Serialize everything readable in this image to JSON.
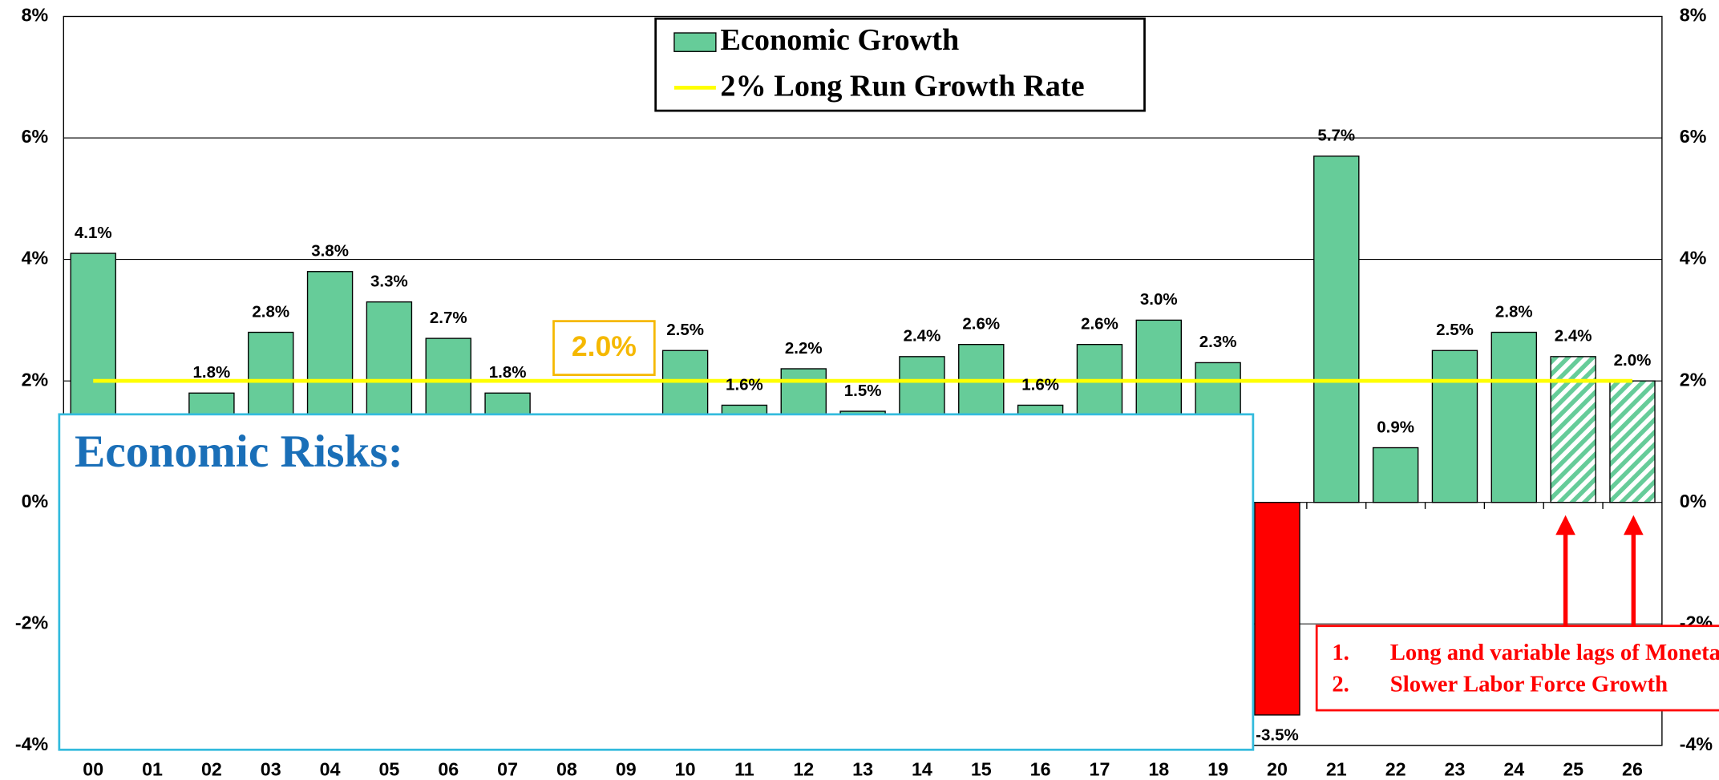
{
  "chart_data": {
    "type": "bar",
    "categories": [
      "00",
      "01",
      "02",
      "03",
      "04",
      "05",
      "06",
      "07",
      "08",
      "09",
      "10",
      "11",
      "12",
      "13",
      "14",
      "15",
      "16",
      "17",
      "18",
      "19",
      "20",
      "21",
      "22",
      "23",
      "24",
      "25",
      "26"
    ],
    "series": [
      {
        "name": "Economic Growth",
        "color": "#66cc99",
        "negative_color": "#ff0000",
        "values": [
          4.1,
          null,
          1.8,
          2.8,
          3.8,
          3.3,
          2.7,
          1.8,
          null,
          null,
          2.5,
          1.6,
          2.2,
          1.5,
          2.4,
          2.6,
          1.6,
          2.6,
          3.0,
          2.3,
          -3.5,
          5.7,
          0.9,
          2.5,
          2.8,
          2.4,
          2.0
        ],
        "value_labels": [
          "4.1%",
          null,
          "1.8%",
          "2.8%",
          "3.8%",
          "3.3%",
          "2.7%",
          "1.8%",
          null,
          null,
          "2.5%",
          "1.6%",
          "2.2%",
          "1.5%",
          "2.4%",
          "2.6%",
          "1.6%",
          "2.6%",
          "3.0%",
          "2.3%",
          "-3.5%",
          "5.7%",
          "0.9%",
          "2.5%",
          "2.8%",
          "2.4%",
          "2.0%"
        ]
      }
    ],
    "hatched_categories": [
      "25",
      "26"
    ],
    "reference_line": {
      "value": 2,
      "label": "2% Long Run Growth Rate",
      "color": "#ffff00"
    },
    "annotation": "2.0%",
    "ylim": [
      -4,
      8
    ],
    "yticks": [
      {
        "value": -4,
        "label": "-4%"
      },
      {
        "value": -2,
        "label": "-2%"
      },
      {
        "value": 0,
        "label": "0%"
      },
      {
        "value": 2,
        "label": "2%"
      },
      {
        "value": 4,
        "label": "4%"
      },
      {
        "value": 6,
        "label": "6%"
      },
      {
        "value": 8,
        "label": "8%"
      }
    ],
    "grid": true,
    "risk_box_title": "Economic Risks:",
    "risk_list": [
      {
        "number": "1.",
        "text": "Long and variable lags of Monetary Policy"
      },
      {
        "number": "2.",
        "text": "Slower Labor Force Growth"
      }
    ]
  }
}
